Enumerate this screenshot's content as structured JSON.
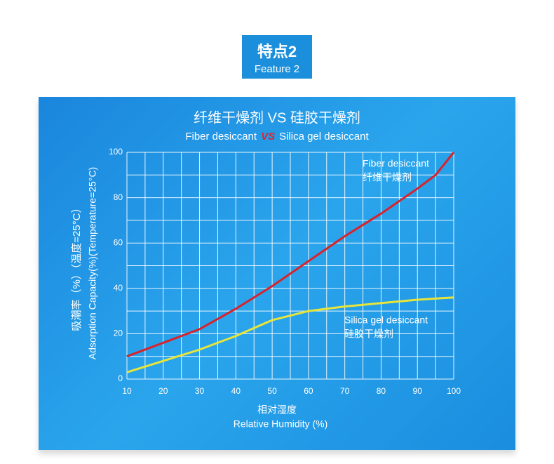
{
  "header": {
    "title": "特点2",
    "subtitle": "Feature 2"
  },
  "chart_data": {
    "type": "line",
    "title": "纤维干燥剂 VS 硅胶干燥剂",
    "subtitle": {
      "left": "Fiber desiccant",
      "vs": "VS",
      "right": "Silica gel desiccant"
    },
    "y_label": "吸潮率（%）（温度=25°C）",
    "y_label_en": "Adsorption Capacity(%)(Temperature=25°C)",
    "x_label": "相对湿度",
    "x_label_en": "Relative Humidity (%)",
    "xlim": [
      10,
      100
    ],
    "ylim": [
      0,
      100
    ],
    "xticks": [
      10,
      20,
      30,
      40,
      50,
      60,
      70,
      80,
      90,
      100
    ],
    "yticks": [
      0,
      20,
      40,
      60,
      80,
      100
    ],
    "x_grid": [
      15,
      25,
      35,
      45,
      55,
      65,
      75,
      85,
      95
    ],
    "y_grid": [
      10,
      30,
      50,
      70,
      90
    ],
    "grid": true,
    "series": [
      {
        "name": "Fiber desiccant",
        "name_cn": "纤维干燥剂",
        "color": "#d8232a",
        "x": [
          10,
          20,
          25,
          30,
          40,
          50,
          60,
          70,
          80,
          90,
          95,
          100
        ],
        "values": [
          10,
          16,
          19,
          22,
          31,
          41,
          52,
          63,
          73,
          84,
          90,
          100
        ]
      },
      {
        "name": "Silica gel desiccant",
        "name_cn": "硅胶干燥剂",
        "color": "#e8e53a",
        "x": [
          10,
          20,
          30,
          40,
          50,
          60,
          70,
          80,
          90,
          100
        ],
        "values": [
          3,
          8,
          13,
          19,
          26,
          30,
          32,
          33.5,
          35,
          36
        ]
      }
    ]
  }
}
